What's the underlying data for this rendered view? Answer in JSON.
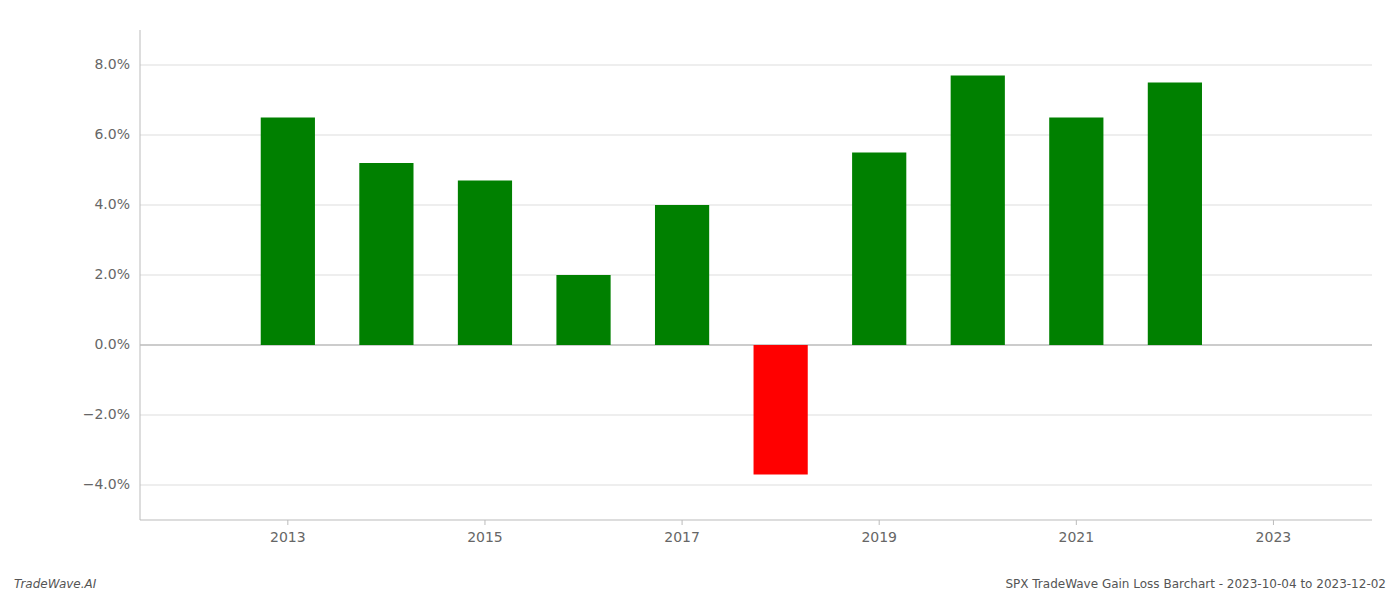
{
  "chart_data": {
    "type": "bar",
    "title": "SPX TradeWave Gain Loss Barchart - 2023-10-04 to 2023-12-02",
    "annotations": [
      "TradeWave.AI"
    ],
    "x": [
      2013,
      2014,
      2015,
      2016,
      2017,
      2018,
      2019,
      2020,
      2021,
      2022
    ],
    "values": [
      0.065,
      0.052,
      0.047,
      0.02,
      0.04,
      -0.037,
      0.055,
      0.077,
      0.065,
      0.075
    ],
    "colors": [
      "#008000",
      "#008000",
      "#008000",
      "#008000",
      "#008000",
      "#ff0000",
      "#008000",
      "#008000",
      "#008000",
      "#008000"
    ],
    "xlim": [
      2011.5,
      2024.0
    ],
    "xticks": [
      2013,
      2015,
      2017,
      2019,
      2021,
      2023
    ],
    "ylim": [
      -0.05,
      0.09
    ],
    "yticks": [
      {
        "value": -0.04,
        "label": "−4.0%"
      },
      {
        "value": -0.02,
        "label": "−2.0%"
      },
      {
        "value": 0.0,
        "label": "0.0%"
      },
      {
        "value": 0.02,
        "label": "2.0%"
      },
      {
        "value": 0.04,
        "label": "4.0%"
      },
      {
        "value": 0.06,
        "label": "6.0%"
      },
      {
        "value": 0.08,
        "label": "8.0%"
      }
    ],
    "grid": true
  }
}
